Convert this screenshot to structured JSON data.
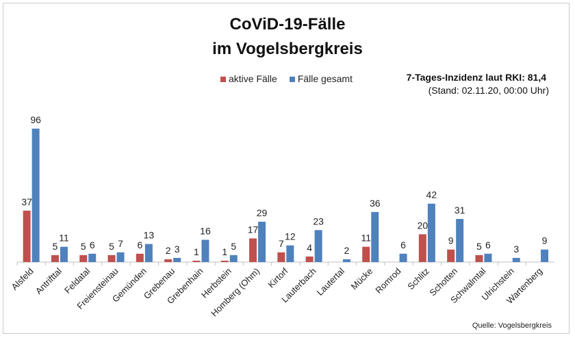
{
  "chart_data": {
    "type": "bar",
    "title": "CoViD-19-Fälle",
    "subtitle": "im Vogelsbergkreis",
    "categories": [
      "Alsfeld",
      "Antrifttal",
      "Feldatal",
      "Freiensteinau",
      "Gemünden",
      "Grebenau",
      "Grebenhain",
      "Herbstein",
      "Homberg (Ohm)",
      "Kirtorf",
      "Lauterbach",
      "Lautertal",
      "Mücke",
      "Romrod",
      "Schlitz",
      "Schotten",
      "Schwalmtal",
      "Ulrichstein",
      "Wartenberg"
    ],
    "series": [
      {
        "name": "aktive Fälle",
        "color": "#c0504d",
        "values": [
          37,
          5,
          5,
          5,
          6,
          2,
          1,
          1,
          17,
          7,
          4,
          null,
          11,
          null,
          20,
          9,
          5,
          null,
          null
        ]
      },
      {
        "name": "Fälle gesamt",
        "color": "#4f81bd",
        "values": [
          96,
          11,
          6,
          7,
          13,
          3,
          16,
          5,
          29,
          12,
          23,
          2,
          36,
          6,
          42,
          31,
          6,
          3,
          9
        ]
      }
    ],
    "xlabel": "",
    "ylabel": "",
    "ylim": [
      0,
      100
    ],
    "grid": false,
    "legend_position": "top-center",
    "annotations": [
      "7-Tages-Inzidenz laut RKI: 81,4",
      "(Stand: 02.11.20, 00:00 Uhr)",
      "Quelle: Vogelsbergkreis"
    ]
  }
}
